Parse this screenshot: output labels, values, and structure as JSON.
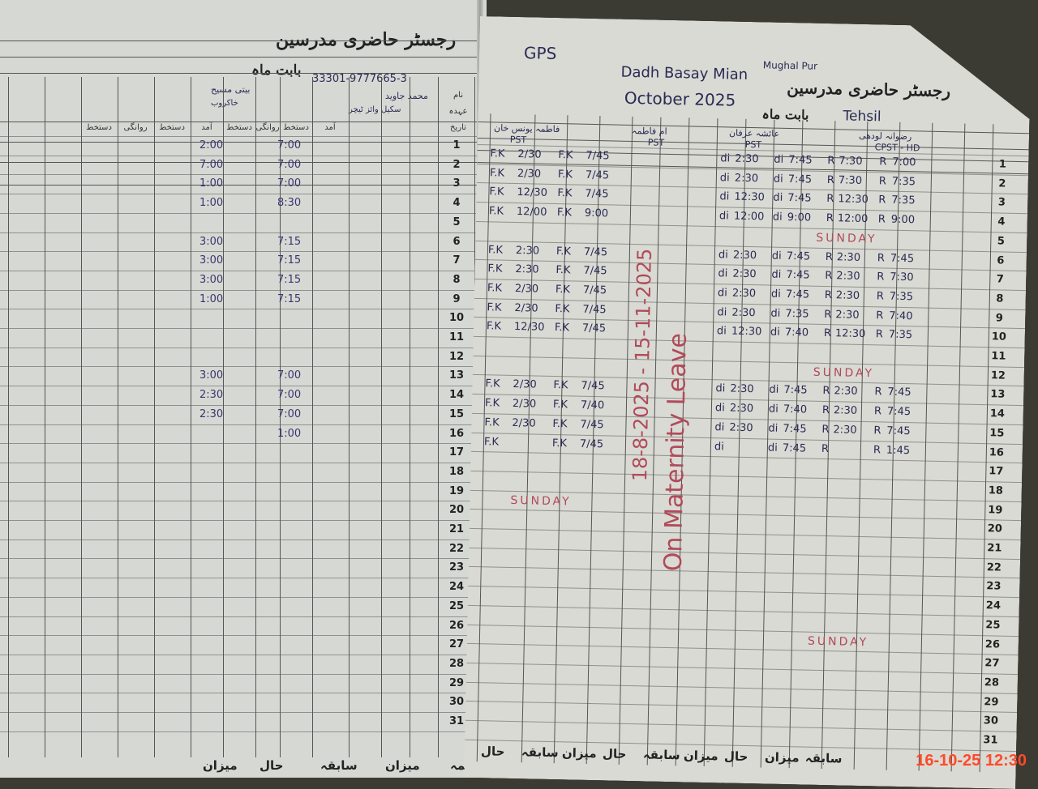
{
  "left_page": {
    "title": "رجسٹر حاضری مدرسین",
    "month_label": "بابت ماہ",
    "cnic": "33301-9777665-3",
    "row_labels": [
      "نام",
      "عہدہ",
      "تاریخ"
    ],
    "teachers": [
      {
        "name": "محمد جاوید",
        "designation": "سکیل وائز ٹیچر"
      },
      {
        "name": "بیتی مسیح",
        "designation": "خاکروب"
      }
    ],
    "column_headers": [
      "آمد",
      "دستخط",
      "روانگی",
      "دستخط"
    ],
    "entries": [
      {
        "day": 1,
        "arrival": "7:00",
        "departure": "2:00"
      },
      {
        "day": 2,
        "arrival": "7:00",
        "departure": "7:00"
      },
      {
        "day": 3,
        "arrival": "7:00",
        "departure": "1:00"
      },
      {
        "day": 4,
        "arrival": "8:30",
        "departure": "1:00"
      },
      {
        "day": 6,
        "arrival": "7:15",
        "departure": "3:00"
      },
      {
        "day": 7,
        "arrival": "7:15",
        "departure": "3:00"
      },
      {
        "day": 8,
        "arrival": "7:15",
        "departure": "3:00"
      },
      {
        "day": 9,
        "arrival": "7:15",
        "departure": "1:00"
      },
      {
        "day": 13,
        "arrival": "7:00",
        "departure": "3:00"
      },
      {
        "day": 14,
        "arrival": "7:00",
        "departure": "2:30"
      },
      {
        "day": 15,
        "arrival": "7:00",
        "departure": "2:30"
      },
      {
        "day": 16,
        "arrival": "1:00",
        "departure": ""
      }
    ],
    "footer": [
      "تتمہ",
      "میزان",
      "سابقہ",
      "حال",
      "میزان"
    ]
  },
  "right_page": {
    "school": "GPS",
    "village": "Dadh Basay Mian",
    "place": "Mughal Pur",
    "title": "رجسٹر حاضری مدرسین",
    "month": "October 2025",
    "month_label": "بابت ماہ",
    "tehsil": "Tehsil",
    "teachers": [
      {
        "name": "فاطمہ یونس خان",
        "designation": "PST",
        "initials": "F.K"
      },
      {
        "name": "ام فاطمہ",
        "designation": "PST",
        "initials": ""
      },
      {
        "name": "عائشہ عرفان",
        "designation": "PST",
        "initials": "di"
      },
      {
        "name": "رضوانہ لودھی",
        "designation": "CPST - HD",
        "initials": "R"
      }
    ],
    "entries_fk": [
      {
        "day": 1,
        "arrival": "7/45",
        "departure": "2/30"
      },
      {
        "day": 2,
        "arrival": "7/45",
        "departure": "2/30"
      },
      {
        "day": 3,
        "arrival": "7/45",
        "departure": "12/30"
      },
      {
        "day": 4,
        "arrival": "9:00",
        "departure": "12/00"
      },
      {
        "day": 6,
        "arrival": "7/45",
        "departure": "2:30"
      },
      {
        "day": 7,
        "arrival": "7/45",
        "departure": "2:30"
      },
      {
        "day": 8,
        "arrival": "7/45",
        "departure": "2/30"
      },
      {
        "day": 9,
        "arrival": "7/45",
        "departure": "2/30"
      },
      {
        "day": 10,
        "arrival": "7/45",
        "departure": "12/30"
      },
      {
        "day": 13,
        "arrival": "7/45",
        "departure": "2/30"
      },
      {
        "day": 14,
        "arrival": "7/40",
        "departure": "2/30"
      },
      {
        "day": 15,
        "arrival": "7/45",
        "departure": "2/30"
      },
      {
        "day": 16,
        "arrival": "7/45",
        "departure": ""
      }
    ],
    "entries_di": [
      {
        "day": 1,
        "arrival": "7:45",
        "departure": "2:30"
      },
      {
        "day": 2,
        "arrival": "7:45",
        "departure": "2:30"
      },
      {
        "day": 3,
        "arrival": "7:45",
        "departure": "12:30"
      },
      {
        "day": 4,
        "arrival": "9:00",
        "departure": "12:00"
      },
      {
        "day": 6,
        "arrival": "7:45",
        "departure": "2:30"
      },
      {
        "day": 7,
        "arrival": "7:45",
        "departure": "2:30"
      },
      {
        "day": 8,
        "arrival": "7:45",
        "departure": "2:30"
      },
      {
        "day": 9,
        "arrival": "7:35",
        "departure": "2:30"
      },
      {
        "day": 10,
        "arrival": "7:40",
        "departure": "12:30"
      },
      {
        "day": 13,
        "arrival": "7:45",
        "departure": "2:30"
      },
      {
        "day": 14,
        "arrival": "7:40",
        "departure": "2:30"
      },
      {
        "day": 15,
        "arrival": "7:45",
        "departure": "2:30"
      },
      {
        "day": 16,
        "arrival": "7:45",
        "departure": ""
      }
    ],
    "entries_r": [
      {
        "day": 1,
        "arrival": "7:00",
        "departure": "7:30"
      },
      {
        "day": 2,
        "arrival": "7:35",
        "departure": "7:30"
      },
      {
        "day": 3,
        "arrival": "7:35",
        "departure": "12:30"
      },
      {
        "day": 4,
        "arrival": "9:00",
        "departure": "12:00"
      },
      {
        "day": 6,
        "arrival": "7:45",
        "departure": "2:30"
      },
      {
        "day": 7,
        "arrival": "7:30",
        "departure": "2:30"
      },
      {
        "day": 8,
        "arrival": "7:35",
        "departure": "2:30"
      },
      {
        "day": 9,
        "arrival": "7:40",
        "departure": "2:30"
      },
      {
        "day": 10,
        "arrival": "7:35",
        "departure": "12:30"
      },
      {
        "day": 13,
        "arrival": "7:45",
        "departure": "2:30"
      },
      {
        "day": 14,
        "arrival": "7:45",
        "departure": "2:30"
      },
      {
        "day": 15,
        "arrival": "7:45",
        "departure": "2:30"
      },
      {
        "day": 16,
        "arrival": "1:45",
        "departure": ""
      }
    ],
    "sunday_days": [
      5,
      12,
      19,
      26
    ],
    "sunday_label": "SUNDAY",
    "leave_note_dates": "18-8-2025 - 15-11-2025",
    "leave_note": "On Maternity Leave",
    "footer": [
      "حال",
      "سابقہ",
      "میزان",
      "حال",
      "سابقہ",
      "میزان",
      "حال",
      "میزان",
      "سابقہ"
    ]
  },
  "days": [
    1,
    2,
    3,
    4,
    5,
    6,
    7,
    8,
    9,
    10,
    11,
    12,
    13,
    14,
    15,
    16,
    17,
    18,
    19,
    20,
    21,
    22,
    23,
    24,
    25,
    26,
    27,
    28,
    29,
    30,
    31
  ],
  "timestamp": "16-10-25 12:30",
  "colors": {
    "ink_blue": "#2a2a55",
    "ink_red": "#b04a5a",
    "stamp": "#ff4a2a"
  }
}
